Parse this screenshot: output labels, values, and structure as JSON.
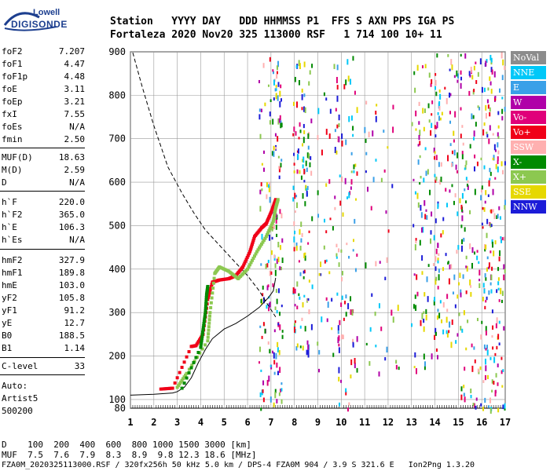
{
  "logo": {
    "top": "Lowell",
    "main": "DIGISONDE"
  },
  "header": {
    "line1": "Station   YYYY DAY   DDD HHMMSS P1  FFS S AXN PPS IGA PS",
    "line2": "Fortaleza 2020 Nov20 325 113000 RSF   1 714 100 10+ 11"
  },
  "params": [
    {
      "name": "foF2",
      "value": "7.207"
    },
    {
      "name": "foF1",
      "value": "4.47"
    },
    {
      "name": "foF1p",
      "value": "4.48"
    },
    {
      "name": "foE",
      "value": "3.11"
    },
    {
      "name": "foEp",
      "value": "3.21"
    },
    {
      "name": "fxI",
      "value": "7.55"
    },
    {
      "name": "foEs",
      "value": "N/A"
    },
    {
      "name": "fmin",
      "value": "2.50"
    },
    {
      "name": "MUF(D)",
      "value": "18.63"
    },
    {
      "name": "M(D)",
      "value": "2.59"
    },
    {
      "name": "D",
      "value": "N/A"
    },
    {
      "name": "h`F",
      "value": "220.0"
    },
    {
      "name": "h`F2",
      "value": "365.0"
    },
    {
      "name": "h`E",
      "value": "106.3"
    },
    {
      "name": "h`Es",
      "value": "N/A"
    },
    {
      "name": "hmF2",
      "value": "327.9"
    },
    {
      "name": "hmF1",
      "value": "189.8"
    },
    {
      "name": "hmE",
      "value": "103.0"
    },
    {
      "name": "yF2",
      "value": "105.8"
    },
    {
      "name": "yF1",
      "value": "91.2"
    },
    {
      "name": "yE",
      "value": "12.7"
    },
    {
      "name": "B0",
      "value": "188.5"
    },
    {
      "name": "B1",
      "value": "1.14"
    },
    {
      "name": "C-level",
      "value": "33"
    }
  ],
  "auto": {
    "line1": "Auto:",
    "line2": "Artist5",
    "line3": "500200"
  },
  "legend": [
    {
      "label": "NoVal",
      "color": "#8c8c8c"
    },
    {
      "label": "NNE",
      "color": "#00c8f8"
    },
    {
      "label": "E",
      "color": "#3aa0e8"
    },
    {
      "label": "W",
      "color": "#b000a8"
    },
    {
      "label": "Vo-",
      "color": "#e0007a"
    },
    {
      "label": "Vo+",
      "color": "#f00018"
    },
    {
      "label": "SSW",
      "color": "#ffb0b0"
    },
    {
      "label": "X-",
      "color": "#008a00"
    },
    {
      "label": "X+",
      "color": "#8cc850"
    },
    {
      "label": "SSE",
      "color": "#e6d800"
    },
    {
      "label": "NNW",
      "color": "#1c1cd8"
    }
  ],
  "footer": {
    "line1": "D    100  200  400  600  800 1000 1500 3000 [km]",
    "line2": "MUF  7.5  7.6  7.9  8.3  8.9  9.8 12.3 18.6 [MHz]",
    "line3": "FZA0M_2020325113000.RSF / 320fx256h 50 kHz 5.0 km / DPS-4 FZA0M 904 / 3.9 S 321.6 E   Ion2Png 1.3.20"
  },
  "chart_data": {
    "type": "scatter",
    "xlabel": "",
    "ylabel": "",
    "xlim": [
      1,
      17
    ],
    "ylim": [
      80,
      900
    ],
    "x_ticks": [
      1,
      2,
      3,
      4,
      5,
      6,
      7,
      8,
      9,
      10,
      11,
      12,
      13,
      14,
      15,
      16,
      17
    ],
    "y_ticks": [
      100,
      200,
      300,
      400,
      500,
      600,
      700,
      800,
      900
    ],
    "y_tick_labels": [
      "100",
      "200",
      "300",
      "400",
      "500",
      "600",
      "700",
      "800",
      "900"
    ],
    "y_extra_label": "80",
    "series": [
      {
        "name": "Vo+",
        "values": [
          [
            2.3,
            124
          ],
          [
            2.8,
            126
          ],
          [
            3.6,
            222
          ],
          [
            3.8,
            224
          ],
          [
            4.1,
            250
          ],
          [
            4.3,
            330
          ],
          [
            4.5,
            370
          ],
          [
            4.8,
            375
          ],
          [
            5.2,
            378
          ],
          [
            5.5,
            385
          ],
          [
            5.8,
            405
          ],
          [
            6.1,
            440
          ],
          [
            6.3,
            475
          ],
          [
            6.6,
            495
          ],
          [
            6.8,
            505
          ],
          [
            7.0,
            530
          ],
          [
            7.2,
            560
          ]
        ]
      },
      {
        "name": "X+",
        "values": [
          [
            3.0,
            128
          ],
          [
            3.4,
            160
          ],
          [
            4.3,
            235
          ],
          [
            4.4,
            300
          ],
          [
            4.6,
            390
          ],
          [
            4.8,
            405
          ],
          [
            5.2,
            395
          ],
          [
            5.6,
            378
          ],
          [
            6.0,
            400
          ],
          [
            6.4,
            440
          ],
          [
            6.8,
            475
          ],
          [
            7.1,
            510
          ],
          [
            7.2,
            540
          ],
          [
            7.3,
            560
          ]
        ]
      },
      {
        "name": "X-",
        "values": [
          [
            3.2,
            126
          ],
          [
            4.0,
            220
          ],
          [
            4.1,
            260
          ],
          [
            4.2,
            300
          ],
          [
            4.25,
            340
          ],
          [
            4.3,
            360
          ]
        ]
      }
    ],
    "f_layer_trace": [
      [
        1.0,
        110
      ],
      [
        2.0,
        112
      ],
      [
        2.8,
        115
      ],
      [
        3.0,
        118
      ],
      [
        3.3,
        128
      ],
      [
        3.6,
        150
      ],
      [
        3.9,
        185
      ],
      [
        4.2,
        215
      ],
      [
        4.5,
        240
      ],
      [
        5.0,
        262
      ],
      [
        5.5,
        275
      ],
      [
        6.0,
        292
      ],
      [
        6.5,
        312
      ],
      [
        6.9,
        335
      ],
      [
        7.1,
        350
      ],
      [
        7.2,
        380
      ]
    ],
    "mp_trace": [
      [
        1.1,
        898
      ],
      [
        1.5,
        820
      ],
      [
        2.0,
        730
      ],
      [
        2.6,
        635
      ],
      [
        3.2,
        575
      ],
      [
        3.7,
        530
      ],
      [
        4.2,
        490
      ],
      [
        4.8,
        455
      ],
      [
        5.4,
        420
      ],
      [
        6.0,
        385
      ],
      [
        6.5,
        350
      ],
      [
        6.9,
        315
      ],
      [
        7.2,
        290
      ]
    ]
  }
}
